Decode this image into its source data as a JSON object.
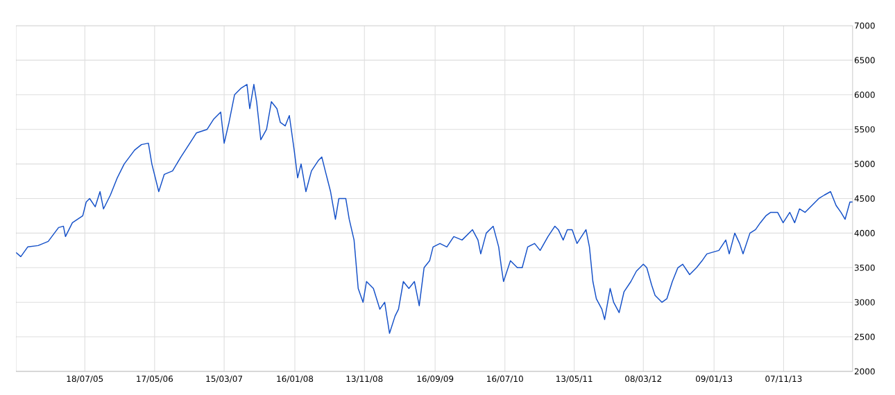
{
  "chart_data": {
    "type": "line",
    "color": "#1450c8",
    "grid": true,
    "xlim": [
      "2004-09-22",
      "2014-09-03"
    ],
    "xticks": [
      {
        "value": "2005-07-18",
        "label": "18/07/05"
      },
      {
        "value": "2006-05-17",
        "label": "17/05/06"
      },
      {
        "value": "2007-03-15",
        "label": "15/03/07"
      },
      {
        "value": "2008-01-16",
        "label": "16/01/08"
      },
      {
        "value": "2008-11-13",
        "label": "13/11/08"
      },
      {
        "value": "2009-09-16",
        "label": "16/09/09"
      },
      {
        "value": "2010-07-16",
        "label": "16/07/10"
      },
      {
        "value": "2011-05-13",
        "label": "13/05/11"
      },
      {
        "value": "2012-03-08",
        "label": "08/03/12"
      },
      {
        "value": "2013-01-09",
        "label": "09/01/13"
      },
      {
        "value": "2013-11-07",
        "label": "07/11/13"
      }
    ],
    "ylim": [
      2000,
      7000
    ],
    "yticks": [
      2000,
      2500,
      3000,
      3500,
      4000,
      4500,
      5000,
      5500,
      6000,
      6500,
      7000
    ],
    "x": [
      "2004-09-22",
      "2004-10-13",
      "2004-11-12",
      "2004-12-27",
      "2005-02-09",
      "2005-03-26",
      "2005-04-16",
      "2005-04-25",
      "2005-05-25",
      "2005-07-09",
      "2005-07-24",
      "2005-08-08",
      "2005-09-01",
      "2005-09-22",
      "2005-10-07",
      "2005-11-06",
      "2005-12-06",
      "2006-01-05",
      "2006-02-19",
      "2006-03-21",
      "2006-04-20",
      "2006-05-05",
      "2006-06-04",
      "2006-06-28",
      "2006-08-03",
      "2006-09-08",
      "2006-10-17",
      "2006-11-15",
      "2006-12-31",
      "2007-01-29",
      "2007-02-28",
      "2007-03-15",
      "2007-04-05",
      "2007-04-29",
      "2007-05-29",
      "2007-06-22",
      "2007-07-04",
      "2007-07-22",
      "2007-08-03",
      "2007-08-21",
      "2007-09-15",
      "2007-10-06",
      "2007-10-30",
      "2007-11-14",
      "2007-12-05",
      "2007-12-23",
      "2008-01-13",
      "2008-01-28",
      "2008-02-12",
      "2008-03-04",
      "2008-03-28",
      "2008-04-27",
      "2008-05-12",
      "2008-05-27",
      "2008-06-19",
      "2008-07-10",
      "2008-07-25",
      "2008-08-24",
      "2008-09-08",
      "2008-09-29",
      "2008-10-17",
      "2008-11-07",
      "2008-11-22",
      "2008-12-22",
      "2009-01-19",
      "2009-02-09",
      "2009-03-02",
      "2009-03-26",
      "2009-04-10",
      "2009-05-01",
      "2009-05-25",
      "2009-06-18",
      "2009-07-09",
      "2009-07-30",
      "2009-08-23",
      "2009-09-07",
      "2009-10-07",
      "2009-11-06",
      "2009-12-06",
      "2010-01-11",
      "2010-02-25",
      "2010-03-21",
      "2010-04-02",
      "2010-04-26",
      "2010-05-26",
      "2010-06-19",
      "2010-07-01",
      "2010-07-10",
      "2010-08-09",
      "2010-09-08",
      "2010-09-29",
      "2010-10-23",
      "2010-11-22",
      "2010-12-16",
      "2011-01-19",
      "2011-02-18",
      "2011-03-05",
      "2011-03-26",
      "2011-04-13",
      "2011-05-04",
      "2011-05-25",
      "2011-07-03",
      "2011-07-18",
      "2011-08-02",
      "2011-08-17",
      "2011-09-10",
      "2011-09-22",
      "2011-10-16",
      "2011-10-31",
      "2011-11-24",
      "2011-12-15",
      "2012-01-14",
      "2012-02-07",
      "2012-03-08",
      "2012-03-23",
      "2012-04-13",
      "2012-04-28",
      "2012-05-28",
      "2012-06-18",
      "2012-07-12",
      "2012-08-05",
      "2012-08-26",
      "2012-09-25",
      "2012-10-25",
      "2012-11-18",
      "2012-12-09",
      "2013-01-30",
      "2013-03-01",
      "2013-03-16",
      "2013-04-09",
      "2013-04-30",
      "2013-05-15",
      "2013-06-14",
      "2013-07-08",
      "2013-07-29",
      "2013-08-22",
      "2013-09-12",
      "2013-10-12",
      "2013-11-05",
      "2013-12-04",
      "2013-12-25",
      "2014-01-15",
      "2014-02-08",
      "2014-03-10",
      "2014-04-09",
      "2014-05-03",
      "2014-05-30",
      "2014-06-23",
      "2014-07-14",
      "2014-08-01",
      "2014-08-22",
      "2014-09-03"
    ],
    "values": [
      3720,
      3660,
      3800,
      3820,
      3880,
      4080,
      4100,
      3950,
      4150,
      4250,
      4450,
      4500,
      4380,
      4600,
      4350,
      4550,
      4800,
      5000,
      5200,
      5280,
      5300,
      5000,
      4600,
      4850,
      4900,
      5100,
      5300,
      5450,
      5500,
      5650,
      5750,
      5300,
      5600,
      6000,
      6100,
      6150,
      5800,
      6150,
      5900,
      5350,
      5500,
      5900,
      5800,
      5600,
      5550,
      5700,
      5200,
      4800,
      5000,
      4600,
      4900,
      5050,
      5100,
      4900,
      4600,
      4200,
      4500,
      4500,
      4200,
      3900,
      3200,
      3000,
      3300,
      3200,
      2900,
      3000,
      2550,
      2800,
      2900,
      3300,
      3200,
      3300,
      2950,
      3500,
      3600,
      3800,
      3850,
      3800,
      3950,
      3900,
      4050,
      3900,
      3700,
      4000,
      4100,
      3800,
      3500,
      3300,
      3600,
      3500,
      3500,
      3800,
      3850,
      3750,
      3950,
      4100,
      4050,
      3900,
      4050,
      4050,
      3850,
      4050,
      3800,
      3300,
      3050,
      2900,
      2750,
      3200,
      3000,
      2850,
      3150,
      3300,
      3450,
      3550,
      3500,
      3250,
      3100,
      3000,
      3050,
      3300,
      3500,
      3550,
      3400,
      3500,
      3600,
      3700,
      3750,
      3900,
      3700,
      4000,
      3850,
      3700,
      4000,
      4050,
      4150,
      4250,
      4300,
      4300,
      4150,
      4300,
      4150,
      4350,
      4300,
      4400,
      4500,
      4550,
      4600,
      4400,
      4300,
      4200,
      4450,
      4450
    ]
  }
}
